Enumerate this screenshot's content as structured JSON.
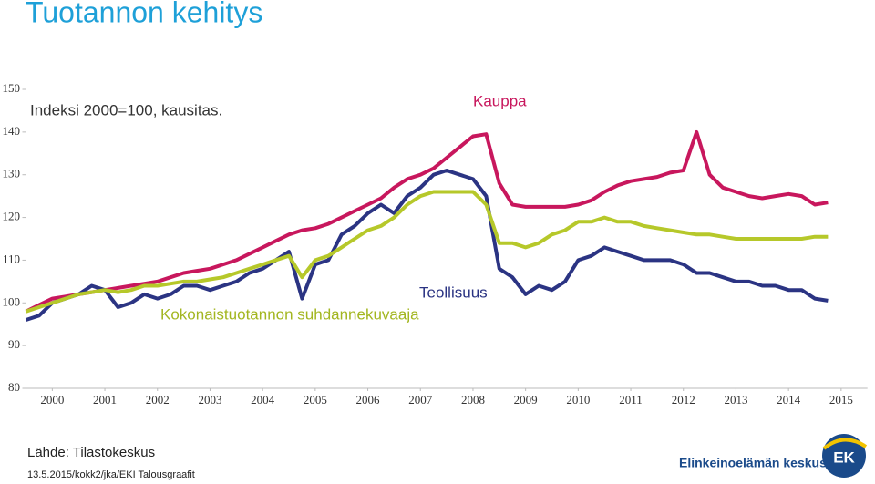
{
  "chart_data": {
    "type": "line",
    "title": "Tuotannon kehitys",
    "annotation": "Indeksi 2000=100, kausitas.",
    "x": [
      2000,
      2000.25,
      2000.5,
      2000.75,
      2001,
      2001.25,
      2001.5,
      2001.75,
      2002,
      2002.25,
      2002.5,
      2002.75,
      2003,
      2003.25,
      2003.5,
      2003.75,
      2004,
      2004.25,
      2004.5,
      2004.75,
      2005,
      2005.25,
      2005.5,
      2005.75,
      2006,
      2006.25,
      2006.5,
      2006.75,
      2007,
      2007.25,
      2007.5,
      2007.75,
      2008,
      2008.25,
      2008.5,
      2008.75,
      2009,
      2009.25,
      2009.5,
      2009.75,
      2010,
      2010.25,
      2010.5,
      2010.75,
      2011,
      2011.25,
      2011.5,
      2011.75,
      2012,
      2012.25,
      2012.5,
      2012.75,
      2013,
      2013.25,
      2013.5,
      2013.75,
      2014,
      2014.25,
      2014.5,
      2014.75,
      2015,
      2015.25
    ],
    "series": [
      {
        "name": "Kauppa",
        "color": "#c8175d",
        "values": [
          98,
          99.5,
          101,
          101.5,
          102,
          102.5,
          103,
          103.5,
          104,
          104.5,
          105,
          106,
          107,
          107.5,
          108,
          109,
          110,
          111.5,
          113,
          114.5,
          116,
          117,
          117.5,
          118.5,
          120,
          121.5,
          123,
          124.5,
          127,
          129,
          130,
          131.5,
          134,
          136.5,
          139,
          139.5,
          128,
          123,
          122.5,
          122.5,
          122.5,
          122.5,
          123,
          124,
          126,
          127.5,
          128.5,
          129,
          129.5,
          130.5,
          131,
          140,
          130,
          127,
          126,
          125,
          124.5,
          125,
          125.5,
          125,
          123,
          123.5
        ]
      },
      {
        "name": "Teollisuus",
        "color": "#2b3483",
        "values": [
          96,
          97,
          100,
          101,
          102,
          104,
          103,
          99,
          100,
          102,
          101,
          102,
          104,
          104,
          103,
          104,
          105,
          107,
          108,
          110,
          112,
          101,
          109,
          110,
          116,
          118,
          121,
          123,
          121,
          125,
          127,
          130,
          131,
          130,
          129,
          125,
          108,
          106,
          102,
          104,
          103,
          105,
          110,
          111,
          113,
          112,
          111,
          110,
          110,
          110,
          109,
          107,
          107,
          106,
          105,
          105,
          104,
          104,
          103,
          103,
          101,
          100.5
        ]
      },
      {
        "name": "Kokonaistuotannon suhdannekuvaaja",
        "color": "#b6c82a",
        "values": [
          98,
          99,
          100,
          101,
          102,
          102.5,
          103,
          102.5,
          103,
          104,
          104,
          104.5,
          105,
          105,
          105.5,
          106,
          107,
          108,
          109,
          110,
          111,
          106,
          110,
          111,
          113,
          115,
          117,
          118,
          120,
          123,
          125,
          126,
          126,
          126,
          126,
          123,
          114,
          114,
          113,
          114,
          116,
          117,
          119,
          119,
          120,
          119,
          119,
          118,
          117.5,
          117,
          116.5,
          116,
          116,
          115.5,
          115,
          115,
          115,
          115,
          115,
          115,
          115.5,
          115.5
        ]
      }
    ],
    "xlim": [
      2000,
      2016
    ],
    "xticks": [
      {
        "value": 2000.5,
        "label": "2000"
      },
      {
        "value": 2001.5,
        "label": "2001"
      },
      {
        "value": 2002.5,
        "label": "2002"
      },
      {
        "value": 2003.5,
        "label": "2003"
      },
      {
        "value": 2004.5,
        "label": "2004"
      },
      {
        "value": 2005.5,
        "label": "2005"
      },
      {
        "value": 2006.5,
        "label": "2006"
      },
      {
        "value": 2007.5,
        "label": "2007"
      },
      {
        "value": 2008.5,
        "label": "2008"
      },
      {
        "value": 2009.5,
        "label": "2009"
      },
      {
        "value": 2010.5,
        "label": "2010"
      },
      {
        "value": 2011.5,
        "label": "2011"
      },
      {
        "value": 2012.5,
        "label": "2012"
      },
      {
        "value": 2013.5,
        "label": "2013"
      },
      {
        "value": 2014.5,
        "label": "2014"
      },
      {
        "value": 2015.5,
        "label": "2015"
      }
    ],
    "ylim": [
      80,
      150
    ],
    "yticks": [
      80,
      90,
      100,
      110,
      120,
      130,
      140,
      150
    ],
    "grid": false
  },
  "source": "Lähde: Tilastokeskus",
  "footer": "13.5.2015/kokk2/jka/EKI Talousgraafit",
  "logo": {
    "name": "Elinkeinoelämän keskusliitto",
    "mark": "EK"
  }
}
